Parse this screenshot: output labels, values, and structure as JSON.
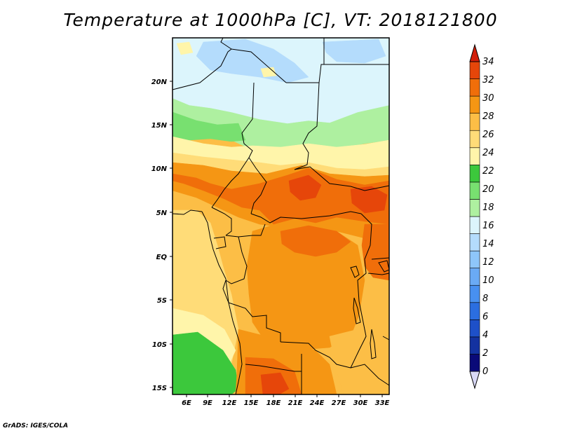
{
  "title": "Temperature at 1000hPa [C], VT: 2018121800",
  "credit": "GrADS: IGES/COLA",
  "map": {
    "lon_labels": [
      "6E",
      "9E",
      "12E",
      "15E",
      "18E",
      "21E",
      "24E",
      "27E",
      "30E",
      "33E"
    ],
    "lat_labels": [
      "20N",
      "15N",
      "10N",
      "5N",
      "EQ",
      "5S",
      "10S",
      "15S"
    ]
  },
  "colorbar": {
    "levels": [
      "0",
      "2",
      "4",
      "6",
      "8",
      "10",
      "12",
      "14",
      "16",
      "18",
      "20",
      "22",
      "24",
      "26",
      "28",
      "30",
      "32",
      "34"
    ],
    "colors": [
      "#0a0a78",
      "#1432a0",
      "#1e50c8",
      "#2b6ee0",
      "#4890f0",
      "#6aaaf5",
      "#8ec6fa",
      "#b4dcfc",
      "#dcf5fc",
      "#aef0a0",
      "#78e070",
      "#3cc83c",
      "#fff5aa",
      "#ffdc78",
      "#fcbe46",
      "#f59614",
      "#f06e0a",
      "#e6460a",
      "#d21e0a"
    ]
  },
  "field_colors": {
    "t13_15": "#b4dcfc",
    "t15_17": "#dcf5fc",
    "t17_19": "#aef0a0",
    "t19_21": "#78e070",
    "t21_23": "#3cc83c",
    "t23_25": "#fff5aa",
    "t25_27": "#ffdc78",
    "t27_29": "#fcbe46",
    "t29_31": "#f59614",
    "t31_33": "#f06e0a",
    "t33_35": "#e6460a"
  }
}
